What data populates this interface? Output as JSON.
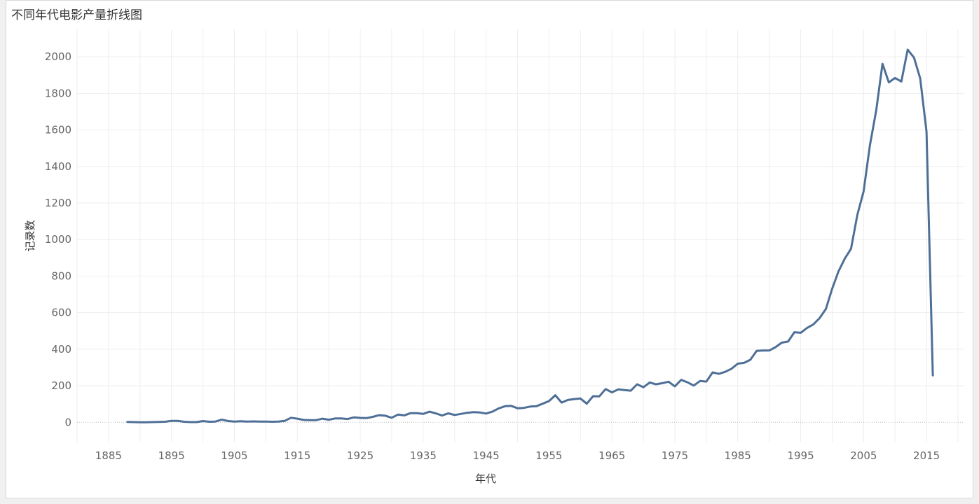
{
  "title": "不同年代电影产量折线图",
  "chart_data": {
    "type": "line",
    "xlabel": "年代",
    "ylabel": "记录数",
    "xlim": [
      1880,
      2021
    ],
    "ylim": [
      -110,
      2150
    ],
    "x_ticks": [
      1885,
      1895,
      1905,
      1915,
      1925,
      1935,
      1945,
      1955,
      1965,
      1975,
      1985,
      1995,
      2005,
      2015
    ],
    "y_ticks": [
      0,
      200,
      400,
      600,
      800,
      1000,
      1200,
      1400,
      1600,
      1800,
      2000
    ],
    "grid": true,
    "color": "#4e6f96",
    "series": [
      {
        "x": [
          1888,
          1889,
          1890,
          1891,
          1892,
          1893,
          1894,
          1895,
          1896,
          1897,
          1898,
          1899,
          1900,
          1901,
          1902,
          1903,
          1904,
          1905,
          1906,
          1907,
          1908,
          1909,
          1910,
          1911,
          1912,
          1913,
          1914,
          1915,
          1916,
          1917,
          1918,
          1919,
          1920,
          1921,
          1922,
          1923,
          1924,
          1925,
          1926,
          1927,
          1928,
          1929,
          1930,
          1931,
          1932,
          1933,
          1934,
          1935,
          1936,
          1937,
          1938,
          1939,
          1940,
          1941,
          1942,
          1943,
          1944,
          1945,
          1946,
          1947,
          1948,
          1949,
          1950,
          1951,
          1952,
          1953,
          1954,
          1955,
          1956,
          1957,
          1958,
          1959,
          1960,
          1961,
          1962,
          1963,
          1964,
          1965,
          1966,
          1967,
          1968,
          1969,
          1970,
          1971,
          1972,
          1973,
          1974,
          1975,
          1976,
          1977,
          1978,
          1979,
          1980,
          1981,
          1982,
          1983,
          1984,
          1985,
          1986,
          1987,
          1988,
          1989,
          1990,
          1991,
          1992,
          1993,
          1994,
          1995,
          1996,
          1997,
          1998,
          1999,
          2000,
          2001,
          2002,
          2003,
          2004,
          2005,
          2006,
          2007,
          2008,
          2009,
          2010,
          2011,
          2012,
          2013,
          2014,
          2015,
          2016
        ],
        "y": [
          2,
          1,
          0,
          0,
          1,
          2,
          3,
          8,
          8,
          3,
          1,
          1,
          7,
          3,
          4,
          15,
          7,
          4,
          6,
          4,
          5,
          4,
          4,
          3,
          4,
          8,
          25,
          20,
          13,
          12,
          12,
          20,
          14,
          21,
          21,
          18,
          27,
          24,
          23,
          30,
          39,
          36,
          25,
          42,
          38,
          50,
          50,
          46,
          58,
          49,
          37,
          49,
          40,
          46,
          52,
          56,
          54,
          48,
          58,
          76,
          88,
          90,
          77,
          79,
          86,
          88,
          102,
          116,
          148,
          108,
          122,
          127,
          130,
          102,
          143,
          142,
          182,
          164,
          180,
          176,
          173,
          208,
          192,
          218,
          208,
          214,
          222,
          197,
          232,
          219,
          201,
          226,
          223,
          273,
          265,
          276,
          293,
          321,
          325,
          342,
          391,
          393,
          393,
          411,
          436,
          442,
          493,
          490,
          516,
          535,
          570,
          620,
          730,
          825,
          895,
          950,
          1135,
          1263,
          1515,
          1706,
          1962,
          1860,
          1884,
          1865,
          2039,
          1996,
          1882,
          1591,
          257
        ]
      }
    ]
  }
}
